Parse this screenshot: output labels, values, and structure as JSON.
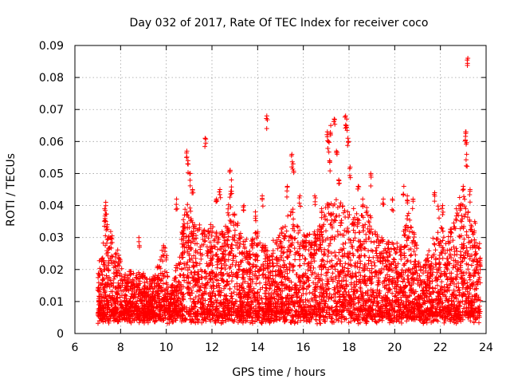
{
  "chart_data": {
    "type": "scatter",
    "title": "Day 032 of 2017, Rate Of TEC Index for receiver coco",
    "xlabel": "GPS time / hours",
    "ylabel": "ROTI / TECUs",
    "xlim": [
      6,
      24
    ],
    "ylim": [
      0,
      0.09
    ],
    "xticks": [
      "6",
      "8",
      "10",
      "12",
      "14",
      "16",
      "18",
      "20",
      "22",
      "24"
    ],
    "yticks": [
      "0",
      "0.01",
      "0.02",
      "0.03",
      "0.04",
      "0.05",
      "0.06",
      "0.07",
      "0.08",
      "0.09"
    ],
    "grid": true,
    "marker": "+",
    "marker_color": "#ff0000",
    "envelope": [
      [
        7.0,
        0.022
      ],
      [
        7.2,
        0.026
      ],
      [
        7.35,
        0.04
      ],
      [
        7.5,
        0.033
      ],
      [
        7.7,
        0.03
      ],
      [
        7.9,
        0.027
      ],
      [
        8.1,
        0.018
      ],
      [
        8.3,
        0.02
      ],
      [
        8.6,
        0.019
      ],
      [
        8.9,
        0.02
      ],
      [
        9.2,
        0.017
      ],
      [
        9.5,
        0.018
      ],
      [
        9.8,
        0.026
      ],
      [
        10.0,
        0.03
      ],
      [
        10.1,
        0.012
      ],
      [
        10.4,
        0.02
      ],
      [
        10.6,
        0.03
      ],
      [
        10.8,
        0.04
      ],
      [
        11.0,
        0.043
      ],
      [
        11.2,
        0.034
      ],
      [
        11.5,
        0.034
      ],
      [
        11.8,
        0.032
      ],
      [
        12.0,
        0.036
      ],
      [
        12.3,
        0.031
      ],
      [
        12.6,
        0.035
      ],
      [
        12.8,
        0.047
      ],
      [
        13.0,
        0.038
      ],
      [
        13.3,
        0.03
      ],
      [
        13.6,
        0.03
      ],
      [
        14.0,
        0.032
      ],
      [
        14.4,
        0.027
      ],
      [
        14.8,
        0.03
      ],
      [
        15.2,
        0.035
      ],
      [
        15.5,
        0.04
      ],
      [
        15.8,
        0.033
      ],
      [
        16.2,
        0.031
      ],
      [
        16.6,
        0.033
      ],
      [
        17.0,
        0.04
      ],
      [
        17.3,
        0.043
      ],
      [
        17.6,
        0.042
      ],
      [
        17.9,
        0.038
      ],
      [
        18.2,
        0.04
      ],
      [
        18.5,
        0.037
      ],
      [
        18.8,
        0.04
      ],
      [
        19.1,
        0.033
      ],
      [
        19.4,
        0.03
      ],
      [
        19.8,
        0.03
      ],
      [
        20.2,
        0.028
      ],
      [
        20.6,
        0.038
      ],
      [
        20.9,
        0.03
      ],
      [
        21.2,
        0.02
      ],
      [
        21.6,
        0.028
      ],
      [
        21.9,
        0.04
      ],
      [
        22.2,
        0.03
      ],
      [
        22.6,
        0.035
      ],
      [
        22.9,
        0.045
      ],
      [
        23.2,
        0.04
      ],
      [
        23.5,
        0.03
      ],
      [
        23.75,
        0.028
      ]
    ],
    "baseline": 0.005,
    "outliers": [
      [
        7.35,
        0.041
      ],
      [
        7.3,
        0.039
      ],
      [
        8.8,
        0.03
      ],
      [
        10.45,
        0.042
      ],
      [
        10.9,
        0.057
      ],
      [
        10.95,
        0.054
      ],
      [
        11.05,
        0.05
      ],
      [
        11.15,
        0.045
      ],
      [
        11.7,
        0.061
      ],
      [
        12.2,
        0.042
      ],
      [
        12.35,
        0.045
      ],
      [
        12.8,
        0.051
      ],
      [
        12.85,
        0.048
      ],
      [
        13.4,
        0.04
      ],
      [
        13.9,
        0.038
      ],
      [
        14.2,
        0.043
      ],
      [
        14.4,
        0.068
      ],
      [
        15.3,
        0.046
      ],
      [
        15.5,
        0.056
      ],
      [
        15.55,
        0.053
      ],
      [
        15.85,
        0.043
      ],
      [
        16.5,
        0.043
      ],
      [
        16.8,
        0.039
      ],
      [
        17.05,
        0.063
      ],
      [
        17.1,
        0.06
      ],
      [
        17.15,
        0.054
      ],
      [
        17.2,
        0.065
      ],
      [
        17.35,
        0.067
      ],
      [
        17.45,
        0.057
      ],
      [
        17.55,
        0.048
      ],
      [
        17.85,
        0.068
      ],
      [
        17.9,
        0.067
      ],
      [
        17.95,
        0.061
      ],
      [
        18.05,
        0.052
      ],
      [
        18.4,
        0.046
      ],
      [
        18.6,
        0.042
      ],
      [
        18.95,
        0.05
      ],
      [
        19.5,
        0.042
      ],
      [
        19.9,
        0.042
      ],
      [
        20.4,
        0.046
      ],
      [
        20.55,
        0.043
      ],
      [
        20.8,
        0.042
      ],
      [
        21.75,
        0.044
      ],
      [
        22.1,
        0.04
      ],
      [
        22.7,
        0.039
      ],
      [
        23.0,
        0.046
      ],
      [
        23.1,
        0.063
      ],
      [
        23.12,
        0.063
      ],
      [
        23.15,
        0.056
      ],
      [
        23.2,
        0.086
      ],
      [
        23.3,
        0.045
      ],
      [
        23.5,
        0.035
      ]
    ]
  }
}
